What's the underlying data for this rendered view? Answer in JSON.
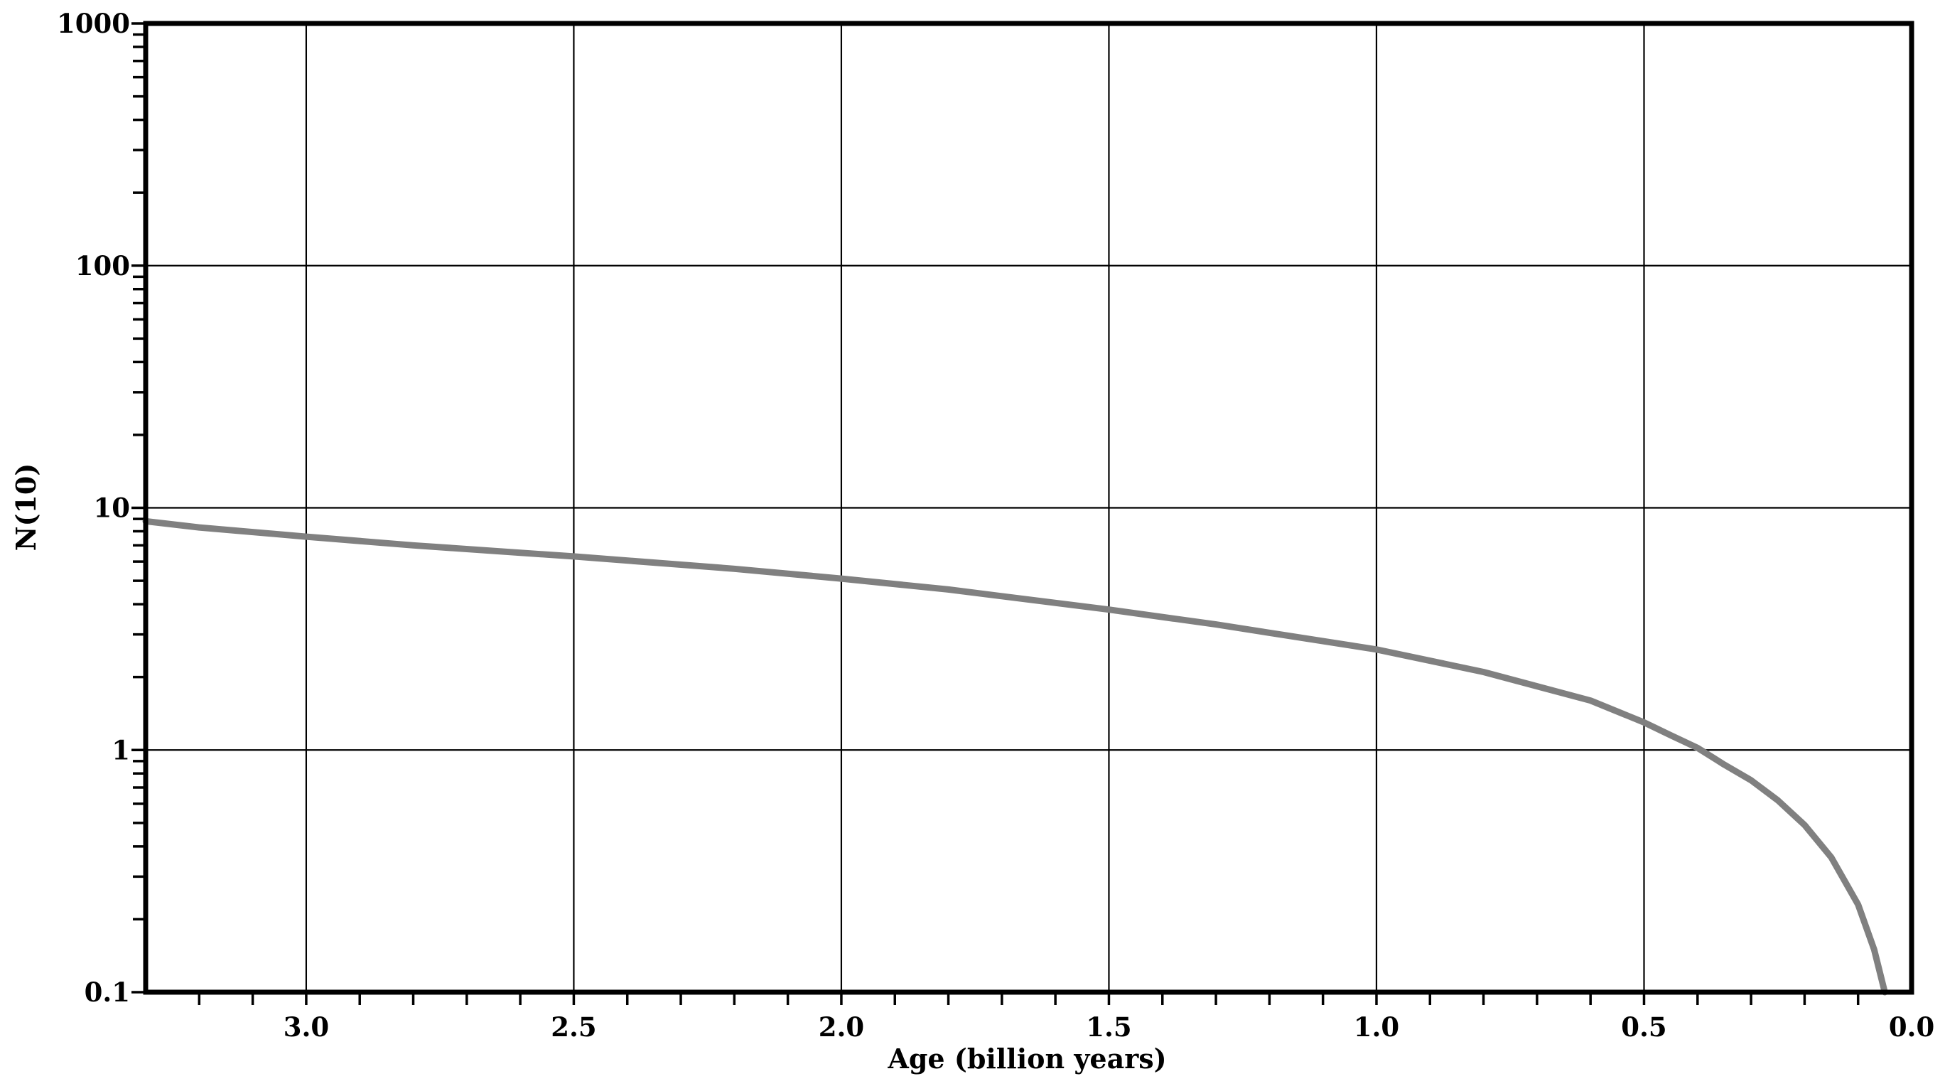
{
  "chart_data": {
    "type": "line",
    "title": "",
    "xlabel": "Age (billion years)",
    "ylabel": "N(10)",
    "x_reversed": true,
    "y_scale": "log",
    "xlim": [
      3.3,
      0.0
    ],
    "ylim": [
      0.1,
      1000
    ],
    "grid": true,
    "x_ticks": [
      3.0,
      2.5,
      2.0,
      1.5,
      1.0,
      0.5,
      0.0
    ],
    "x_tick_labels": [
      "3.0",
      "2.5",
      "2.0",
      "1.5",
      "1.0",
      "0.5",
      "0.0"
    ],
    "y_ticks": [
      0.1,
      1,
      10,
      100,
      1000
    ],
    "y_tick_labels": [
      "0.1",
      "1",
      "10",
      "100",
      "1000"
    ],
    "line_color": "#808080",
    "series": [
      {
        "x": [
          3.3,
          3.2,
          3.0,
          2.8,
          2.5,
          2.2,
          2.0,
          1.8,
          1.5,
          1.3,
          1.0,
          0.8,
          0.6,
          0.5,
          0.45,
          0.4,
          0.35,
          0.3,
          0.25,
          0.2,
          0.15,
          0.1,
          0.07,
          0.05
        ],
        "values": [
          8.8,
          8.3,
          7.6,
          7.0,
          6.3,
          5.6,
          5.1,
          4.6,
          3.8,
          3.3,
          2.6,
          2.1,
          1.6,
          1.3,
          1.15,
          1.02,
          0.87,
          0.75,
          0.62,
          0.49,
          0.36,
          0.23,
          0.15,
          0.1
        ]
      }
    ]
  }
}
